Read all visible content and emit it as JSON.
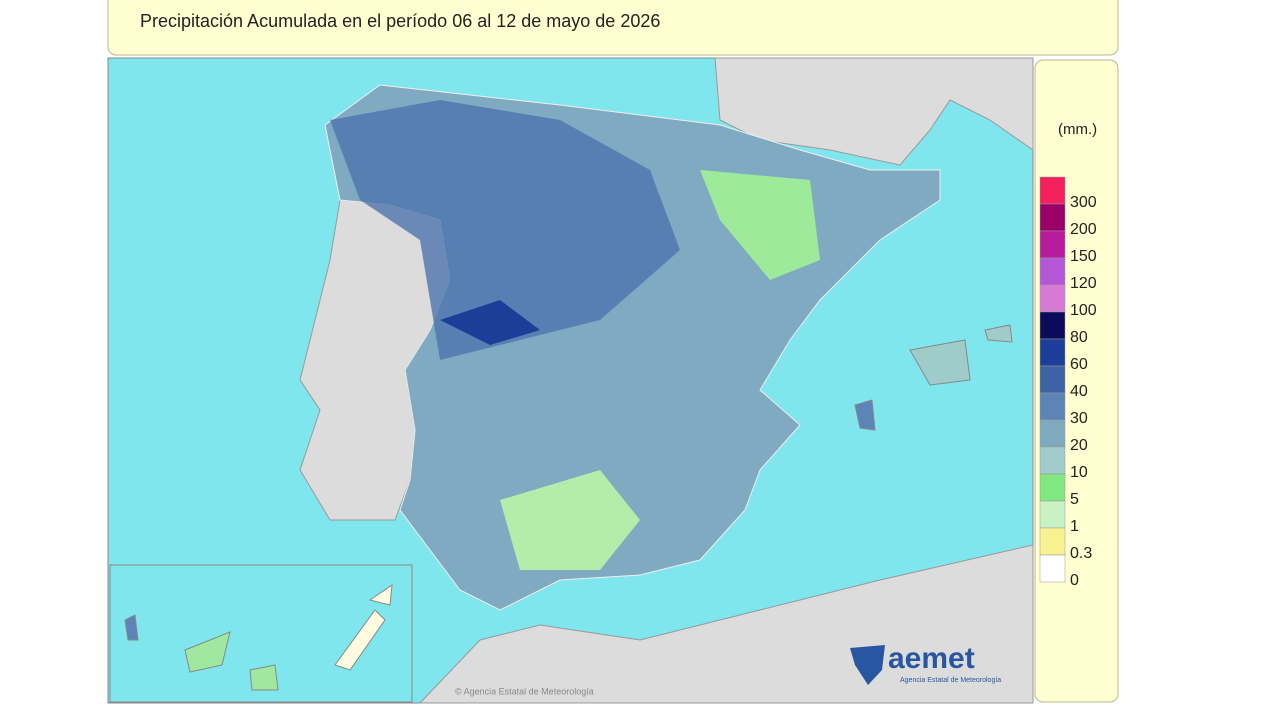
{
  "header": {
    "title": "Precipitación Acumulada en el período 06 al 12 de mayo de 2026"
  },
  "legend": {
    "unit": "(mm.)",
    "items": [
      {
        "label": "300",
        "color": "#f2205c"
      },
      {
        "label": "200",
        "color": "#9a0068"
      },
      {
        "label": "150",
        "color": "#b81c9c"
      },
      {
        "label": "120",
        "color": "#b457d6"
      },
      {
        "label": "100",
        "color": "#d77ad6"
      },
      {
        "label": "80",
        "color": "#0b0b5c"
      },
      {
        "label": "60",
        "color": "#1c3e98"
      },
      {
        "label": "40",
        "color": "#3d63a6"
      },
      {
        "label": "30",
        "color": "#5d84b6"
      },
      {
        "label": "20",
        "color": "#7eaac0"
      },
      {
        "label": "10",
        "color": "#a0cccb"
      },
      {
        "label": "5",
        "color": "#80e87e"
      },
      {
        "label": "1",
        "color": "#c9f2c4"
      },
      {
        "label": "0.3",
        "color": "#f8f291"
      },
      {
        "label": "0",
        "color": "#ffffff"
      }
    ]
  },
  "logo": {
    "name": "aemet",
    "tagline": "Agencia Estatal de Meteorología"
  },
  "watermark": "© Agencia Estatal de Meteorología"
}
